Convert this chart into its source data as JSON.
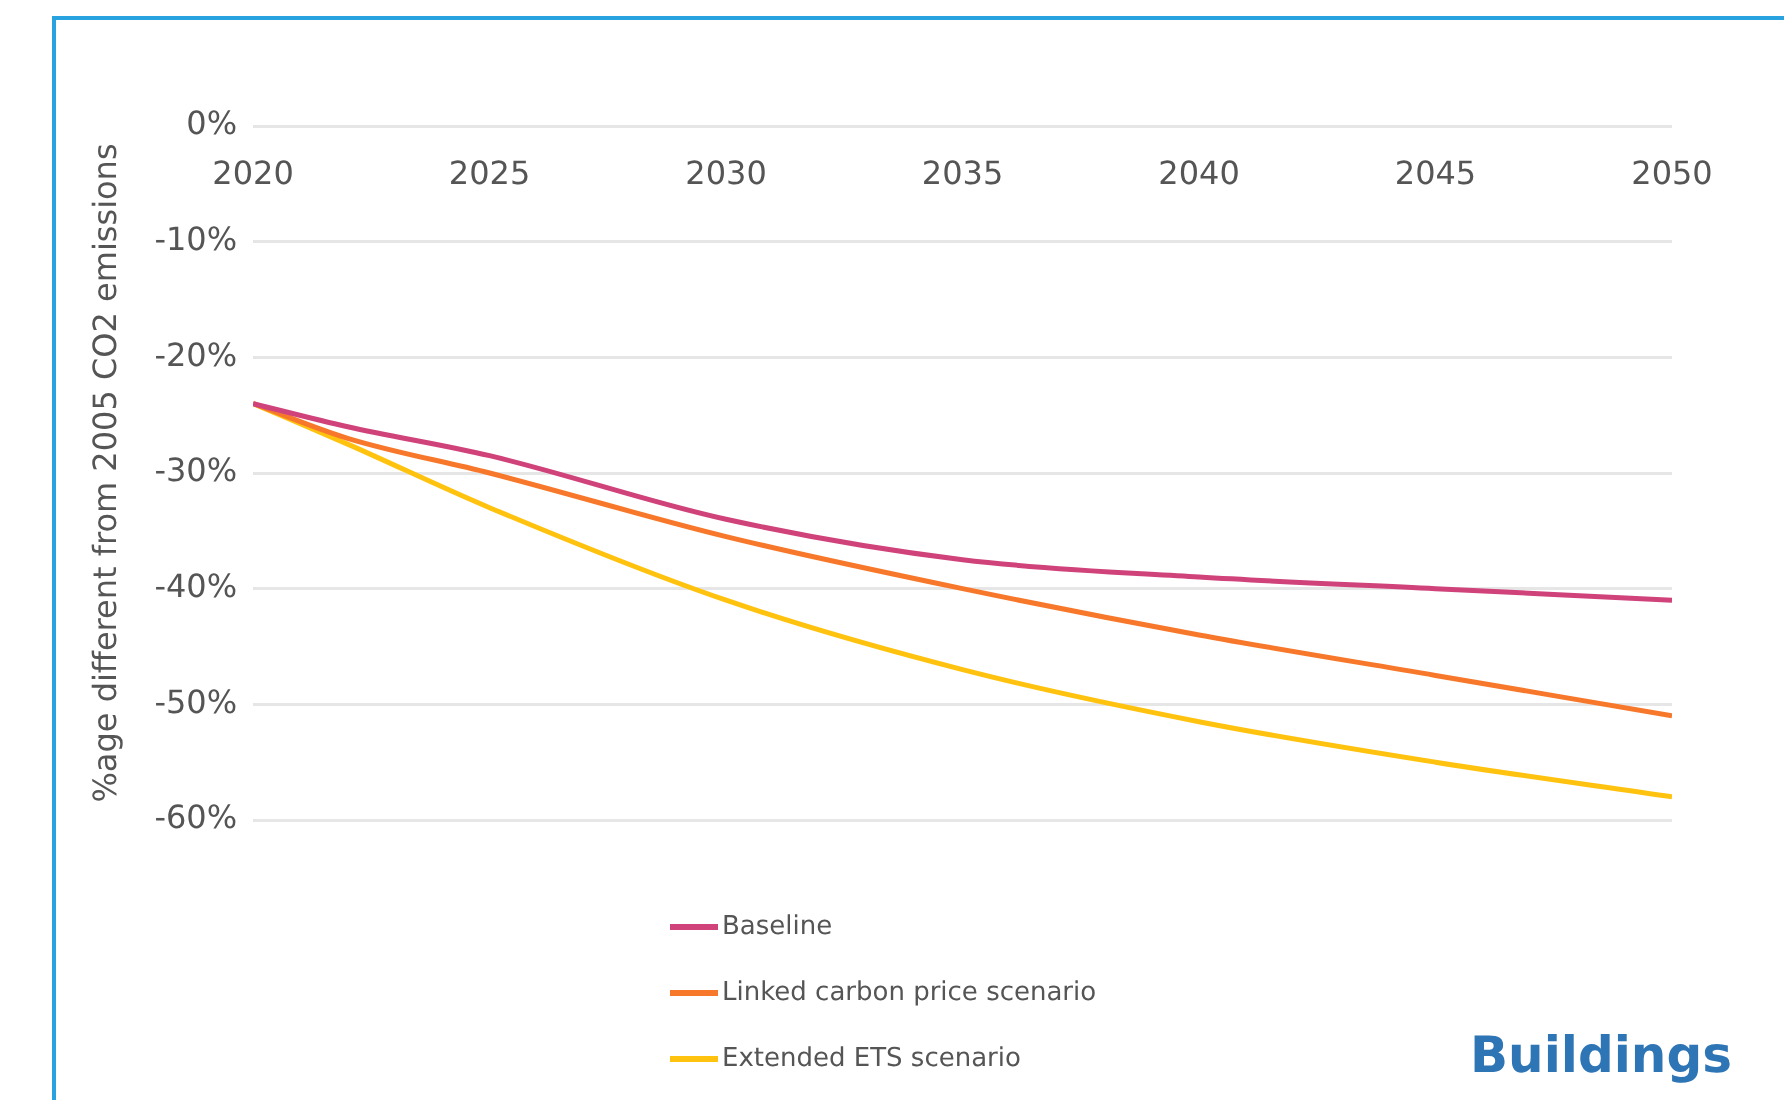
{
  "chart_data": {
    "type": "line",
    "ylabel": "%age different from 2005 CO2 emissions",
    "x": [
      2020,
      2022,
      2025,
      2030,
      2035,
      2040,
      2045,
      2050
    ],
    "xlim": [
      2020,
      2050
    ],
    "xticks": [
      2020,
      2025,
      2030,
      2035,
      2040,
      2045,
      2050
    ],
    "ylim": [
      -60,
      0
    ],
    "yticks": [
      {
        "value": 0,
        "label": "0%"
      },
      {
        "value": -10,
        "label": "-10%"
      },
      {
        "value": -20,
        "label": "-20%"
      },
      {
        "value": -30,
        "label": "-30%"
      },
      {
        "value": -40,
        "label": "-40%"
      },
      {
        "value": -50,
        "label": "-50%"
      },
      {
        "value": -60,
        "label": "-60%"
      }
    ],
    "series": [
      {
        "name": "Baseline",
        "color": "#d0427a",
        "values": [
          -24,
          -26,
          -28.5,
          -34,
          -37.5,
          -39,
          -40,
          -41
        ]
      },
      {
        "name": "Linked carbon price scenario",
        "color": "#f7782a",
        "values": [
          -24,
          -27,
          -30,
          -35.5,
          -40,
          -44,
          -47.5,
          -51
        ]
      },
      {
        "name": "Extended ETS scenario",
        "color": "#ffc20e",
        "values": [
          -24,
          -27.5,
          -33,
          -41,
          -47,
          -51.5,
          -55,
          -58
        ]
      }
    ],
    "grid": "y",
    "legend": "bottom",
    "marker": "none",
    "line_style": "solid",
    "annotations": [
      "Buildings"
    ]
  }
}
